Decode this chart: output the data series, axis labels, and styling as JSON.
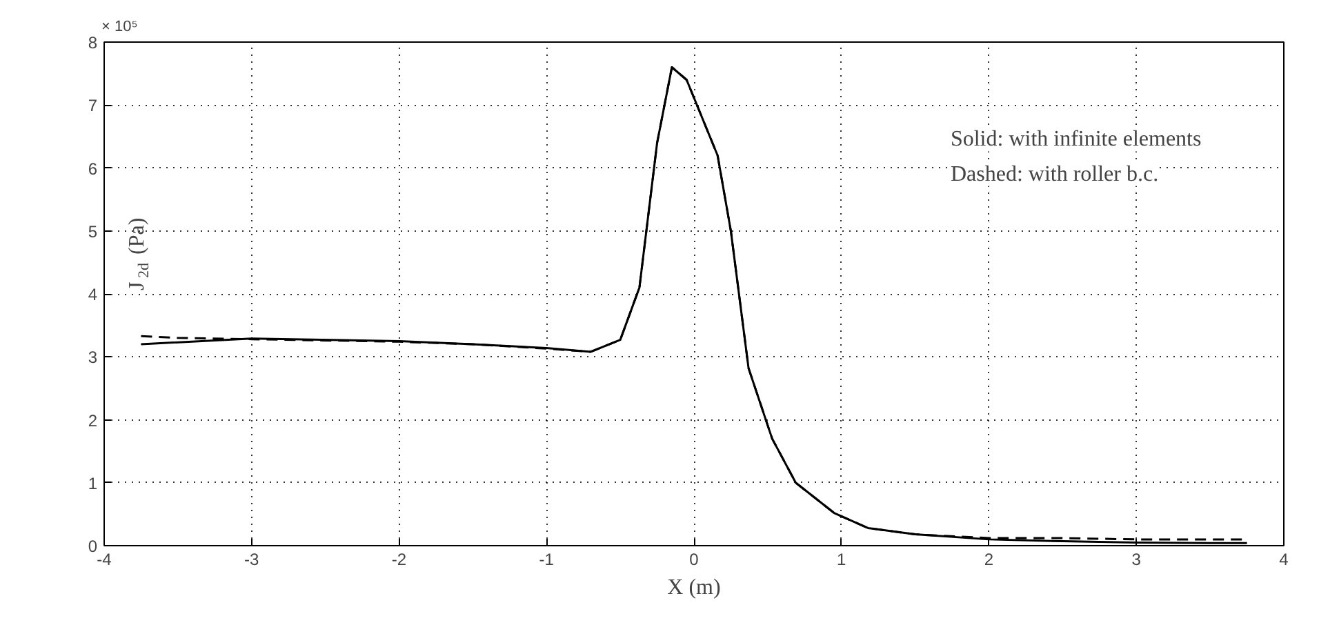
{
  "chart_data": {
    "type": "line",
    "xlabel": "X (m)",
    "ylabel": "J$_{2d}$ (Pa)",
    "xlim": [
      -4,
      4
    ],
    "xticks": [
      -4,
      -3,
      -2,
      -1,
      0,
      1,
      2,
      3,
      4
    ],
    "ylim": [
      0,
      8
    ],
    "yticks": [
      0,
      1,
      2,
      3,
      4,
      5,
      6,
      7,
      8
    ],
    "grid": true,
    "annotations": [
      "× 10⁵",
      "Solid:      with infinite elements",
      "Dashed: with roller b.c."
    ],
    "series": [
      {
        "color": "#000000",
        "line_style": "solid",
        "x": [
          -3.75,
          -3,
          -2,
          -1.5,
          -1,
          -0.7,
          -0.5,
          -0.37,
          -0.25,
          -0.15,
          -0.05,
          0.16,
          0.25,
          0.37,
          0.53,
          0.69,
          0.95,
          1.18,
          1.5,
          2,
          2.5,
          3,
          3.5,
          3.75
        ],
        "values": [
          3.2,
          3.29,
          3.25,
          3.2,
          3.14,
          3.08,
          3.27,
          4.1,
          6.4,
          7.6,
          7.4,
          6.2,
          5.0,
          2.82,
          1.7,
          1.0,
          0.52,
          0.28,
          0.18,
          0.1,
          0.07,
          0.05,
          0.04,
          0.04
        ]
      },
      {
        "color": "#000000",
        "line_style": "dashed",
        "x": [
          -3.75,
          -3.5,
          -3,
          -2,
          -1.5,
          -1,
          -0.7,
          -0.5,
          -0.37,
          -0.25,
          -0.15,
          -0.05,
          0.16,
          0.25,
          0.37,
          0.53,
          0.69,
          0.95,
          1.18,
          1.5,
          2,
          2.5,
          3,
          3.5,
          3.75
        ],
        "values": [
          3.33,
          3.3,
          3.28,
          3.24,
          3.2,
          3.13,
          3.08,
          3.27,
          4.1,
          6.4,
          7.6,
          7.4,
          6.2,
          5.0,
          2.82,
          1.7,
          1.0,
          0.52,
          0.28,
          0.18,
          0.12,
          0.12,
          0.1,
          0.1,
          0.1
        ]
      }
    ]
  }
}
